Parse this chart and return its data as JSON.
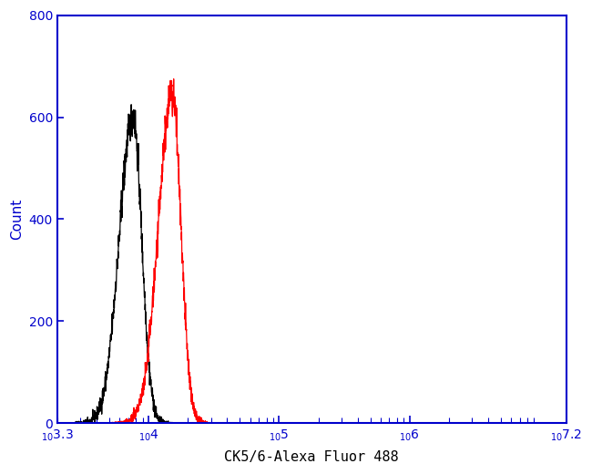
{
  "xlabel": "CK5/6-Alexa Fluor 488",
  "ylabel": "Count",
  "xlim_log": [
    3.3,
    7.2
  ],
  "ylim": [
    0,
    800
  ],
  "yticks": [
    0,
    200,
    400,
    600,
    800
  ],
  "black_peak_log": 3.88,
  "black_peak_height": 600,
  "black_sigma_log": 0.075,
  "red_peak_log": 4.18,
  "red_peak_height": 650,
  "red_sigma_log": 0.075,
  "noise_amplitude": 18,
  "line_color_black": "#000000",
  "line_color_red": "#ff0000",
  "background_color": "#ffffff",
  "tick_color": "#0000cc",
  "label_color_y": "#0000cc",
  "label_color_xlabel": "#000000",
  "spine_color": "#0000cc",
  "xtick_positions_log": [
    3.3,
    4.0,
    5.0,
    6.0,
    7.2
  ],
  "xtick_labels": [
    "$_{10}^{3.3}$",
    "$_{10}^{4}$",
    "$_{10}^{5}$",
    "$_{10}^{6}$",
    "$_{10}^{7.2}$"
  ]
}
